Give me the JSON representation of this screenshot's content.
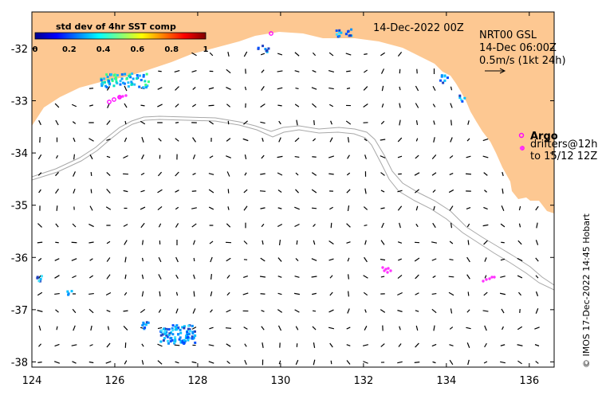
{
  "colors": {
    "land": "#fdc892",
    "ocean": "#ffffff",
    "contour": "#a8a8a8",
    "argo": "#ff00ff",
    "drifter": "#ff33ff",
    "vector": "#000000"
  },
  "map": {
    "lon_range": [
      124,
      136.6
    ],
    "lat_range": [
      -38.1,
      -31.3
    ],
    "x_ticks": [
      124,
      126,
      128,
      130,
      132,
      134,
      136
    ],
    "y_ticks": [
      -32,
      -33,
      -34,
      -35,
      -36,
      -37,
      -38
    ]
  },
  "colorbar": {
    "title": "std dev of 4hr SST comp",
    "ticks": [
      "0",
      "0.2",
      "0.4",
      "0.6",
      "0.8",
      "1"
    ]
  },
  "annotations": {
    "date_main": "14-Dec-2022 00Z",
    "product": "NRT00 GSL",
    "date_sub": "14-Dec 06:00Z",
    "scale": "0.5m/s (1kt 24h)",
    "argo": "Argo",
    "drifters": "drifters@12h",
    "drifters_to": "to 15/12 12Z",
    "credit": "© IMOS 17-Dec-2022 14:45 Hobart"
  }
}
